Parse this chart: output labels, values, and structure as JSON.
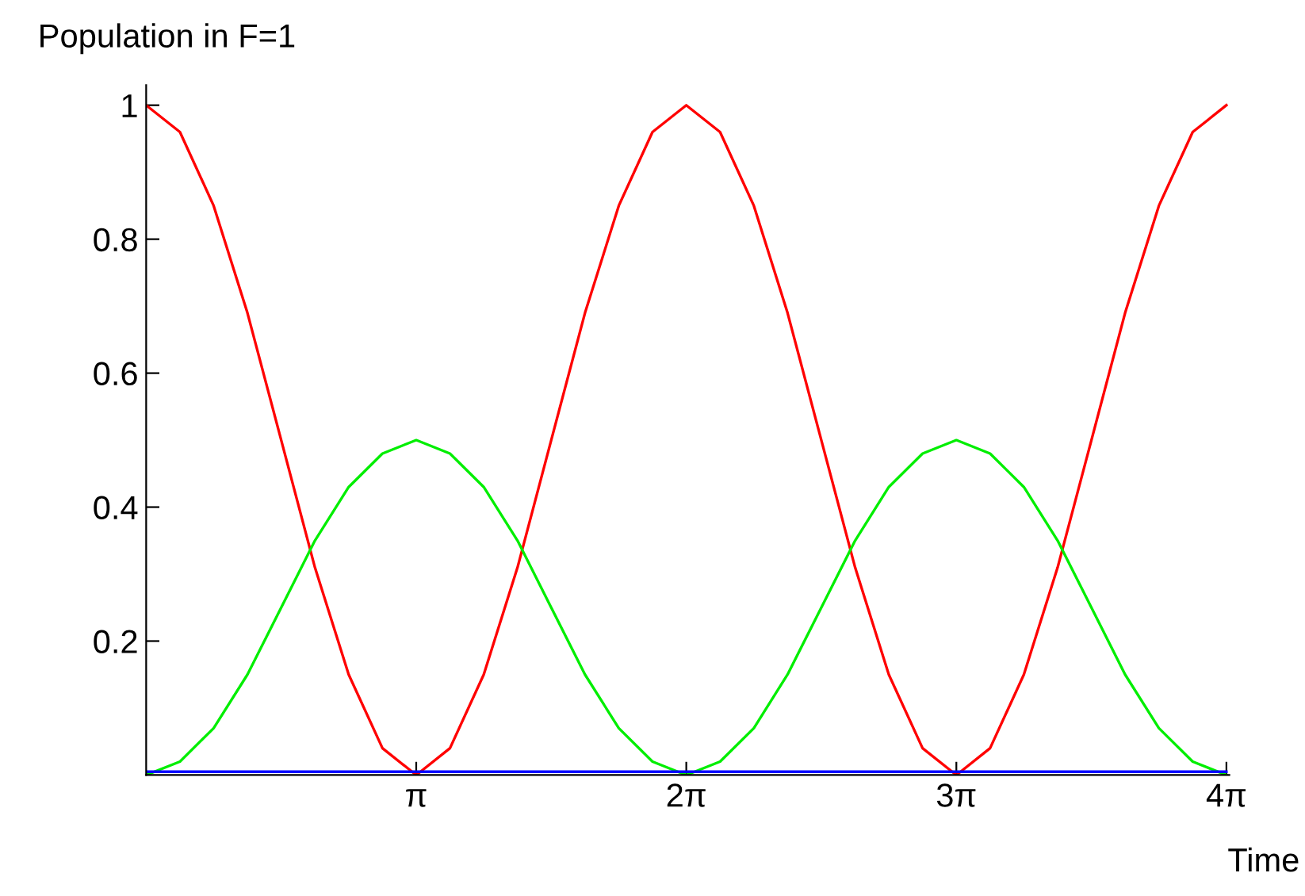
{
  "chart_data": {
    "type": "line",
    "xlabel": "Time",
    "ylabel": "Population in F=1",
    "x": [
      0,
      0.393,
      0.785,
      1.178,
      1.571,
      1.963,
      2.356,
      2.749,
      3.142,
      3.534,
      3.927,
      4.32,
      4.712,
      5.105,
      5.498,
      5.89,
      6.283,
      6.676,
      7.069,
      7.461,
      7.854,
      8.247,
      8.639,
      9.032,
      9.425,
      9.817,
      10.21,
      10.603,
      10.996,
      11.388,
      11.781,
      12.174,
      12.566
    ],
    "series": [
      {
        "color": "#ff0000",
        "values": [
          1,
          0.96,
          0.85,
          0.69,
          0.5,
          0.31,
          0.15,
          0.04,
          0,
          0.04,
          0.15,
          0.31,
          0.5,
          0.69,
          0.85,
          0.96,
          1,
          0.96,
          0.85,
          0.69,
          0.5,
          0.31,
          0.15,
          0.04,
          0,
          0.04,
          0.15,
          0.31,
          0.5,
          0.69,
          0.85,
          0.96,
          1
        ]
      },
      {
        "color": "#00ee00",
        "values": [
          0,
          0.02,
          0.07,
          0.15,
          0.25,
          0.35,
          0.43,
          0.48,
          0.5,
          0.48,
          0.43,
          0.35,
          0.25,
          0.15,
          0.07,
          0.02,
          0,
          0.02,
          0.07,
          0.15,
          0.25,
          0.35,
          0.43,
          0.48,
          0.5,
          0.48,
          0.43,
          0.35,
          0.25,
          0.15,
          0.07,
          0.02,
          0
        ]
      },
      {
        "color": "#0000ff",
        "values": [
          0.005,
          0.005,
          0.005,
          0.005,
          0.005,
          0.005,
          0.005,
          0.005,
          0.005,
          0.005,
          0.005,
          0.005,
          0.005,
          0.005,
          0.005,
          0.005,
          0.005,
          0.005,
          0.005,
          0.005,
          0.005,
          0.005,
          0.005,
          0.005,
          0.005,
          0.005,
          0.005,
          0.005,
          0.005,
          0.005,
          0.005,
          0.005,
          0.005
        ]
      }
    ],
    "xlim": [
      0,
      12.6
    ],
    "ylim": [
      0,
      1.03
    ],
    "xticks": [
      {
        "value": 3.1416,
        "label": "π"
      },
      {
        "value": 6.2832,
        "label": "2π"
      },
      {
        "value": 9.4248,
        "label": "3π"
      },
      {
        "value": 12.5664,
        "label": "4π"
      }
    ],
    "yticks": [
      0.2,
      0.4,
      0.6,
      0.8,
      1
    ],
    "grid": false,
    "legend": false,
    "marker": "none",
    "line_style": "solid"
  }
}
